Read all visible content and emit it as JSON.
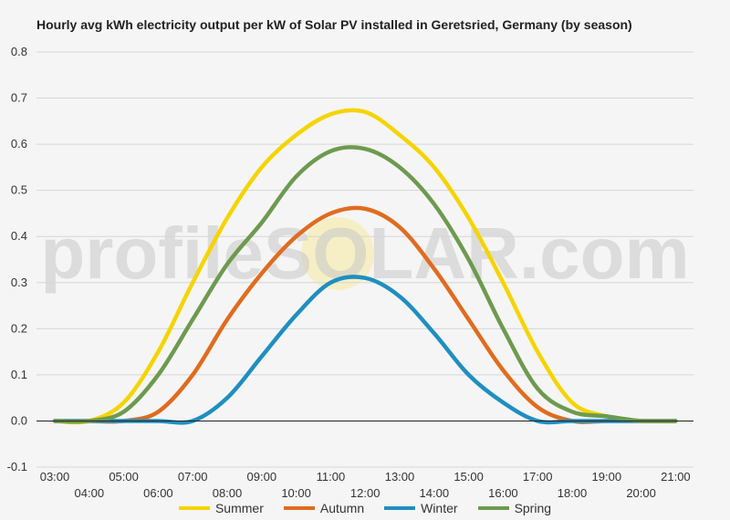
{
  "chart_data": {
    "type": "line",
    "title": "Hourly avg kWh electricity output per kW of Solar PV installed in Geretsried, Germany (by season)",
    "watermark": "profileSOLAR.com",
    "xlabel": "",
    "ylabel": "",
    "ylim": [
      -0.1,
      0.8
    ],
    "yticks": [
      "-0.1",
      "0.0",
      "0.1",
      "0.2",
      "0.3",
      "0.4",
      "0.5",
      "0.6",
      "0.7",
      "0.8"
    ],
    "x": [
      "03:00",
      "04:00",
      "05:00",
      "06:00",
      "07:00",
      "08:00",
      "09:00",
      "10:00",
      "11:00",
      "12:00",
      "13:00",
      "14:00",
      "15:00",
      "16:00",
      "17:00",
      "18:00",
      "19:00",
      "20:00",
      "21:00"
    ],
    "grid": true,
    "legend": "bottom",
    "series": [
      {
        "name": "Summer",
        "color": "#f5d400",
        "values": [
          0.0,
          0.0,
          0.04,
          0.15,
          0.3,
          0.44,
          0.55,
          0.62,
          0.665,
          0.67,
          0.62,
          0.55,
          0.44,
          0.3,
          0.15,
          0.04,
          0.01,
          0.0,
          0.0
        ]
      },
      {
        "name": "Autumn",
        "color": "#e06c1f",
        "values": [
          0.0,
          0.0,
          0.0,
          0.02,
          0.1,
          0.22,
          0.32,
          0.4,
          0.45,
          0.46,
          0.42,
          0.33,
          0.22,
          0.11,
          0.03,
          0.0,
          0.0,
          0.0,
          0.0
        ]
      },
      {
        "name": "Winter",
        "color": "#1f8fc0",
        "values": [
          0.0,
          0.0,
          0.0,
          0.0,
          0.0,
          0.05,
          0.14,
          0.23,
          0.3,
          0.31,
          0.27,
          0.19,
          0.1,
          0.04,
          0.0,
          0.0,
          0.0,
          0.0,
          0.0
        ]
      },
      {
        "name": "Spring",
        "color": "#6d9a4f",
        "values": [
          0.0,
          0.0,
          0.02,
          0.1,
          0.22,
          0.34,
          0.43,
          0.53,
          0.585,
          0.59,
          0.55,
          0.47,
          0.35,
          0.2,
          0.07,
          0.02,
          0.01,
          0.0,
          0.0
        ]
      }
    ]
  }
}
